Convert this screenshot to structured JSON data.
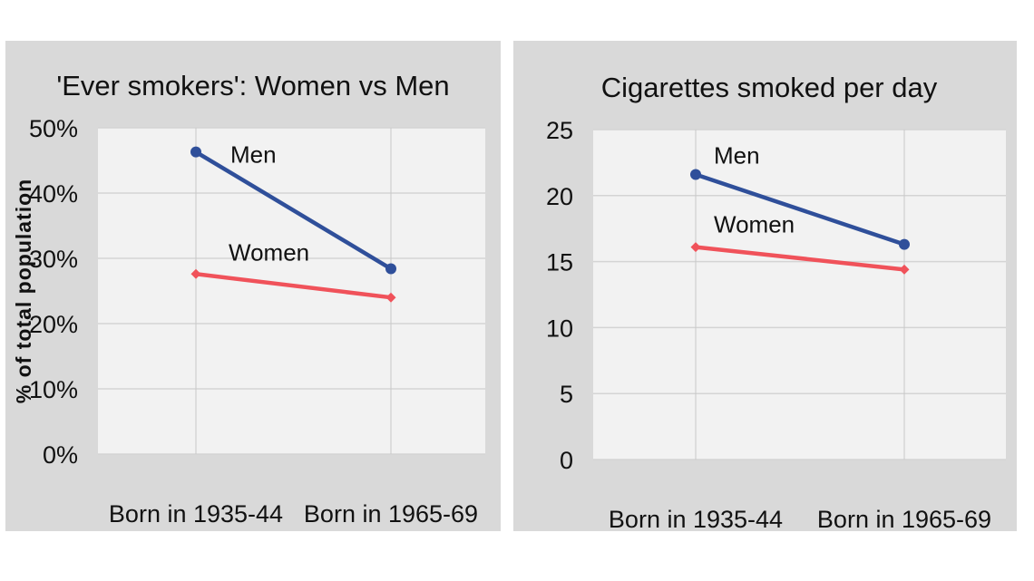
{
  "chart_data": [
    {
      "type": "line",
      "title": "'Ever smokers': Women vs Men",
      "xlabel": "",
      "ylabel": "% of total population",
      "categories": [
        "Born in 1935-44",
        "Born in 1965-69"
      ],
      "ylim": [
        0,
        50
      ],
      "yticks": [
        "0%",
        "10%",
        "20%",
        "30%",
        "40%",
        "50%"
      ],
      "ytick_values": [
        0,
        10,
        20,
        30,
        40,
        50
      ],
      "grid": true,
      "series": [
        {
          "name": "Men",
          "values": [
            46.3,
            28.4
          ],
          "color": "#2f4f9a"
        },
        {
          "name": "Women",
          "values": [
            27.6,
            24.0
          ],
          "color": "#f0525a"
        }
      ]
    },
    {
      "type": "line",
      "title": "Cigarettes smoked per day",
      "xlabel": "",
      "ylabel": "",
      "categories": [
        "Born in 1935-44",
        "Born in 1965-69"
      ],
      "ylim": [
        0,
        25
      ],
      "yticks": [
        "0",
        "5",
        "10",
        "15",
        "20",
        "25"
      ],
      "ytick_values": [
        0,
        5,
        10,
        15,
        20,
        25
      ],
      "grid": true,
      "series": [
        {
          "name": "Men",
          "values": [
            21.6,
            16.3
          ],
          "color": "#2f4f9a"
        },
        {
          "name": "Women",
          "values": [
            16.1,
            14.4
          ],
          "color": "#f0525a"
        }
      ]
    }
  ]
}
